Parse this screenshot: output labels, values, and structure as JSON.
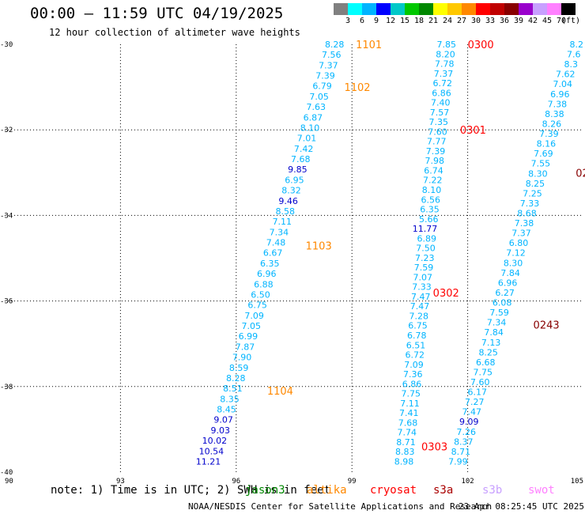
{
  "header": {
    "title": "00:00 — 11:59 UTC 04/19/2025",
    "subtitle": "12 hour collection of altimeter wave heights"
  },
  "colorbar": {
    "colors": [
      "#808080",
      "#00ffff",
      "#00b4ff",
      "#0000ff",
      "#00c8c8",
      "#00c800",
      "#008800",
      "#ffff00",
      "#ffc800",
      "#ff8800",
      "#ff0000",
      "#c00000",
      "#880000",
      "#9900cc",
      "#c8a0ff",
      "#ff80ff",
      "#000000"
    ],
    "labels": [
      "3",
      "6",
      "9",
      "12",
      "15",
      "18",
      "21",
      "24",
      "27",
      "30",
      "33",
      "36",
      "39",
      "42",
      "45",
      "70"
    ],
    "unit": "(ft)"
  },
  "footer": {
    "note": "note: 1) Time is in UTC; 2) SWH is in feet",
    "legend": [
      {
        "name": "jason3",
        "color": "#008800"
      },
      {
        "name": "altika",
        "color": "#ff8800"
      },
      {
        "name": "cryosat",
        "color": "#ff0000"
      },
      {
        "name": "s3a",
        "color": "#aa0000"
      },
      {
        "name": "s3b",
        "color": "#c8a0ff"
      },
      {
        "name": "swot",
        "color": "#ff80ff"
      }
    ],
    "credit": "NOAA/NESDIS Center for Satellite Applications and Research",
    "timestamp": "23 Apr 08:25:45 UTC 2025"
  },
  "chart_data": {
    "type": "scatter",
    "x_ticks": [
      "90",
      "93",
      "96",
      "99",
      "102",
      "105"
    ],
    "y_ticks": [
      "-30",
      "-32",
      "-34",
      "-36",
      "-38",
      "-40"
    ],
    "xlim": [
      90,
      105
    ],
    "ylim": [
      -40,
      -30
    ],
    "grid": true,
    "legend_position": "bottom",
    "value_colors": {
      "cyan": "#00b4ff",
      "blue": "#0000cc"
    },
    "tracks": [
      {
        "values": [
          "8.28",
          "7.56",
          "7.37",
          "7.39",
          "6.79",
          "7.05",
          "7.63",
          "6.87",
          "8.10",
          "7.01",
          "7.42",
          "7.68",
          "9.85",
          "6.95",
          "8.32",
          "9.46",
          "8.58",
          "7.11",
          "7.34",
          "7.48",
          "6.67",
          "6.35",
          "6.96",
          "6.88",
          "6.50",
          "6.75",
          "7.09",
          "7.05",
          "6.99",
          "7.87",
          "7.90",
          "8.59",
          "8.28",
          "8.51",
          "8.35",
          "8.45",
          "9.07",
          "9.03",
          "10.02",
          "10.54",
          "11.21"
        ],
        "lon_start": 98.8,
        "lat_start": -30.0,
        "lon_end": 95.6,
        "lat_end": -39.75,
        "blue_values": [
          "9.85",
          "9.46",
          "9.07",
          "9.03",
          "10.02",
          "10.54",
          "11.21"
        ]
      },
      {
        "values": [
          "7.85",
          "8.20",
          "7.78",
          "7.37",
          "6.72",
          "6.86",
          "7.40",
          "7.57",
          "7.35",
          "7.60",
          "7.77",
          "7.39",
          "7.98",
          "6.74",
          "7.22",
          "8.10",
          "6.56",
          "6.35",
          "5.66",
          "11.77",
          "6.89",
          "7.50",
          "7.23",
          "7.59",
          "7.07",
          "7.33",
          "7.47",
          "7.47",
          "7.28",
          "6.75",
          "6.78",
          "6.51",
          "6.72",
          "7.09",
          "7.36",
          "6.86",
          "7.75",
          "7.11",
          "7.41",
          "7.68",
          "7.74",
          "8.71",
          "8.83",
          "8.98"
        ],
        "lon_start": 101.7,
        "lat_start": -30.0,
        "lon_end": 100.6,
        "lat_end": -39.75,
        "blue_values": [
          "11.77"
        ]
      },
      {
        "values": [
          "8.2",
          "7.6",
          "8.3",
          "7.62",
          "7.04",
          "6.96",
          "7.38",
          "8.38",
          "8.26",
          "7.39",
          "8.16",
          "7.69",
          "7.55",
          "8.30",
          "8.25",
          "7.25",
          "7.33",
          "8.68",
          "7.38",
          "7.37",
          "6.80",
          "7.12",
          "8.30",
          "7.84",
          "6.96",
          "6.27",
          "6.08",
          "7.59",
          "7.34",
          "7.84",
          "7.13",
          "8.25",
          "6.68",
          "7.75",
          "7.60",
          "6.17",
          "7.27",
          "7.47",
          "9.09",
          "7.26",
          "8.37",
          "8.71",
          "7.99"
        ],
        "lon_start": 105.0,
        "lat_start": -30.0,
        "lon_end": 102.0,
        "lat_end": -39.75,
        "blue_values": [
          "9.09"
        ]
      }
    ],
    "pass_labels": [
      {
        "text": "1101",
        "lon": 99.1,
        "lat": -30.0,
        "color": "#ff8800"
      },
      {
        "text": "1102",
        "lon": 98.8,
        "lat": -31.0,
        "color": "#ff8800"
      },
      {
        "text": "1103",
        "lon": 97.8,
        "lat": -34.7,
        "color": "#ff8800"
      },
      {
        "text": "1104",
        "lon": 96.8,
        "lat": -38.1,
        "color": "#ff8800"
      },
      {
        "text": "0300",
        "lon": 102.0,
        "lat": -30.0,
        "color": "#ff0000"
      },
      {
        "text": "0301",
        "lon": 101.8,
        "lat": -32.0,
        "color": "#ff0000"
      },
      {
        "text": "0302",
        "lon": 101.1,
        "lat": -35.8,
        "color": "#ff0000"
      },
      {
        "text": "0303",
        "lon": 100.8,
        "lat": -39.4,
        "color": "#ff0000"
      },
      {
        "text": "0243",
        "lon": 103.7,
        "lat": -36.55,
        "color": "#880000"
      },
      {
        "text": "02",
        "lon": 104.8,
        "lat": -33.0,
        "color": "#880000"
      }
    ]
  }
}
